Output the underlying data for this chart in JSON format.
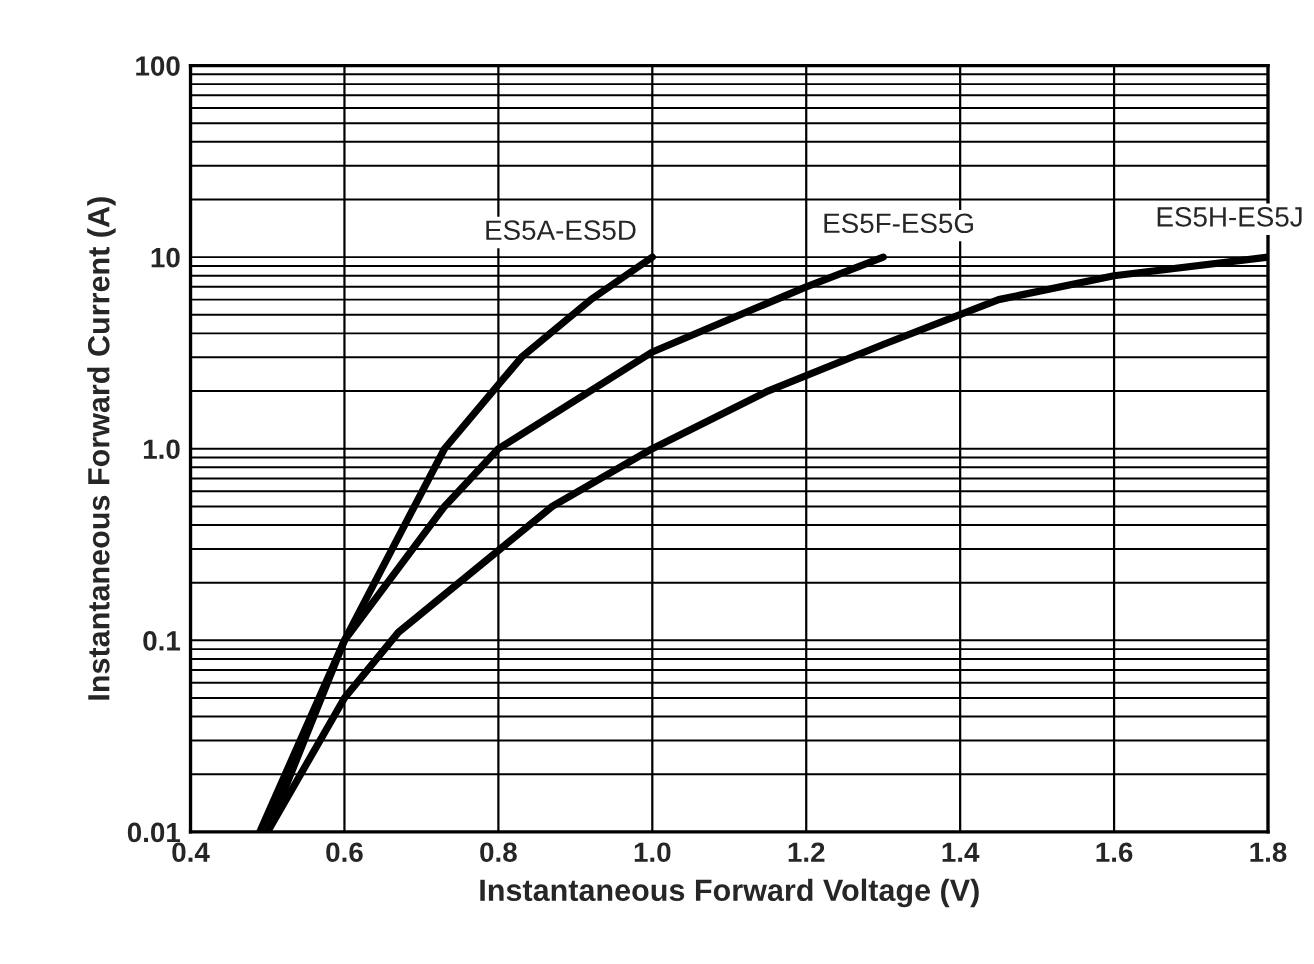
{
  "chart_data": {
    "type": "line",
    "xlabel": "Instantaneous Forward Voltage (V)",
    "ylabel": "Instantaneous Forward Current (A)",
    "log": "y",
    "xlim": [
      0.4,
      1.8
    ],
    "xticks": [
      0.4,
      0.6,
      0.8,
      {
        "value": 1,
        "label": "1.0"
      },
      1.2,
      1.4,
      1.6,
      1.8
    ],
    "ylim": [
      0.01,
      100
    ],
    "yticks": [
      0.01,
      0.1,
      {
        "value": 1,
        "label": "1.0"
      },
      10,
      100
    ],
    "grid": true,
    "marker": "none",
    "line_style": "solid",
    "series": [
      {
        "name": "ES5A-ES5D",
        "color": "#000000",
        "x": [
          0.49,
          0.6,
          0.73,
          0.83,
          0.92,
          1.0
        ],
        "values": [
          0.01,
          0.1,
          1.0,
          3.0,
          6.0,
          10
        ]
      },
      {
        "name": "ES5F-ES5G",
        "color": "#000000",
        "x": [
          0.5,
          0.6,
          0.73,
          0.8,
          1.0,
          1.2,
          1.3
        ],
        "values": [
          0.01,
          0.1,
          0.5,
          1.0,
          3.2,
          7.0,
          10
        ]
      },
      {
        "name": "ES5H-ES5J",
        "color": "#000000",
        "x": [
          0.5,
          0.6,
          0.67,
          0.87,
          1.0,
          1.15,
          1.3,
          1.45,
          1.6,
          1.8
        ],
        "values": [
          0.01,
          0.05,
          0.11,
          0.5,
          1.0,
          2.0,
          3.5,
          6.0,
          8.0,
          10
        ]
      }
    ]
  }
}
